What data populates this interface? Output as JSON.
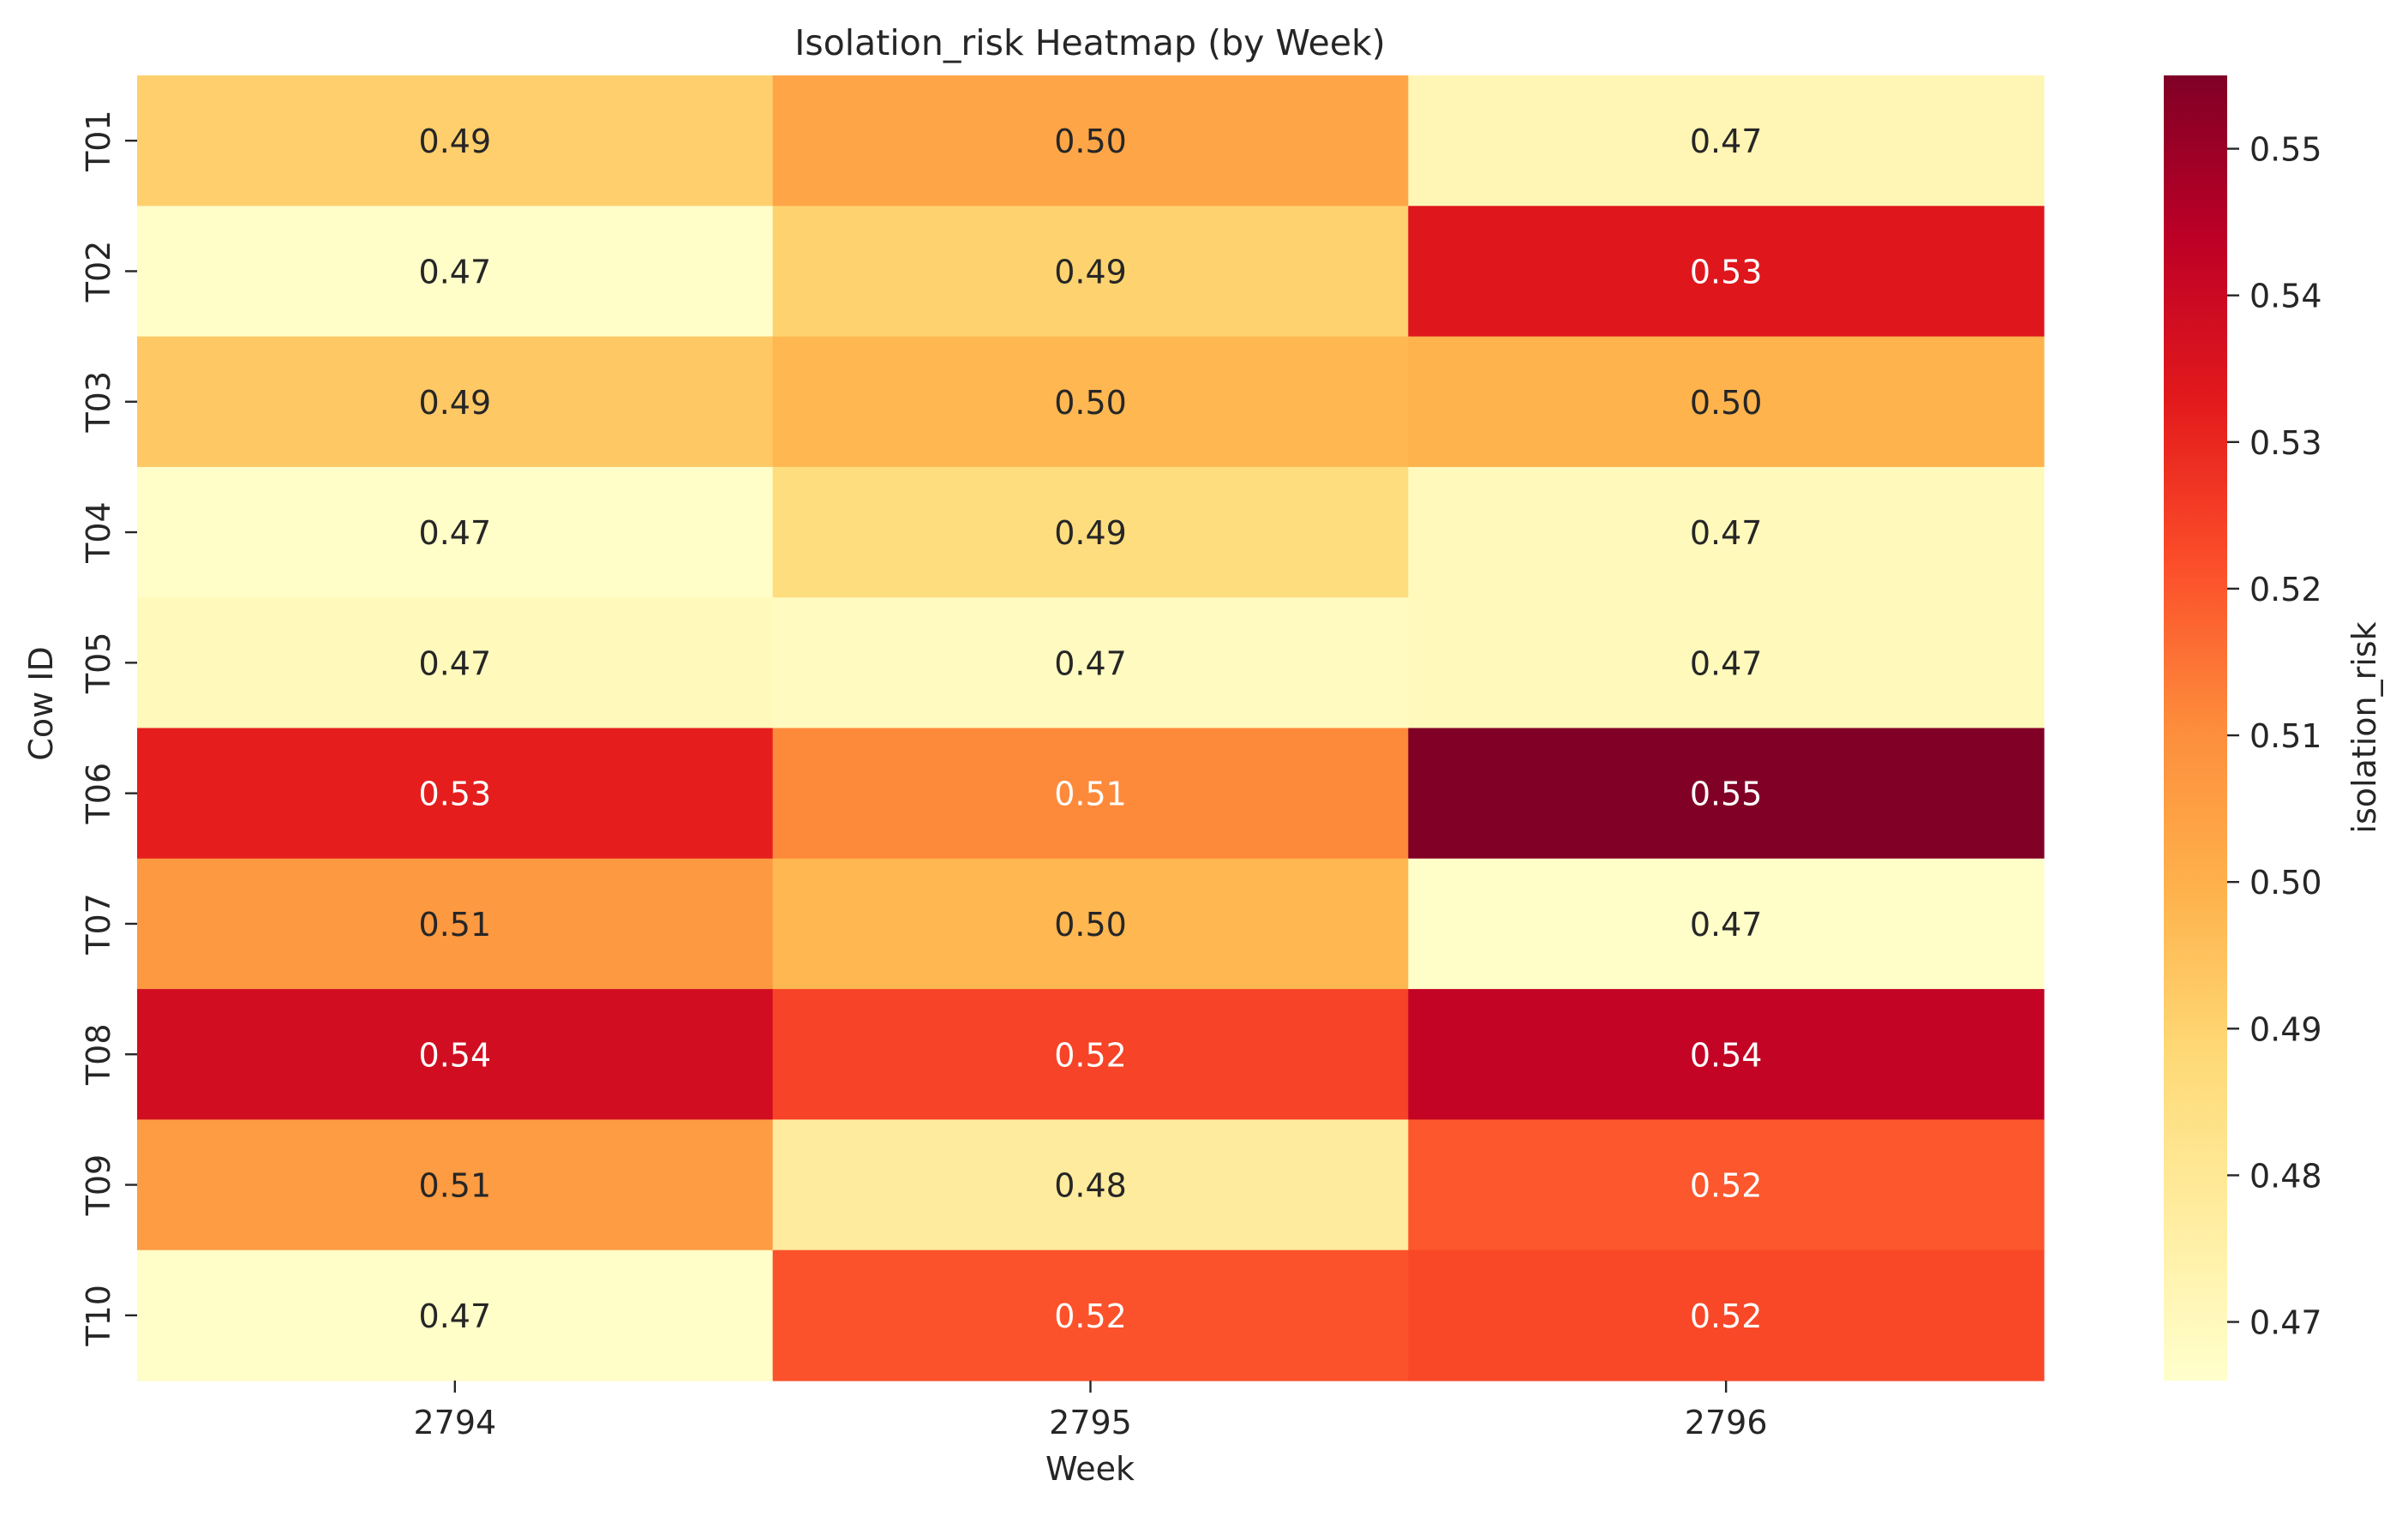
{
  "chart_data": {
    "type": "heatmap",
    "title": "Isolation_risk Heatmap (by Week)",
    "xlabel": "Week",
    "ylabel": "Cow ID",
    "colorbar_label": "isolation_risk",
    "colormap": "YlOrRd",
    "x": [
      "2794",
      "2795",
      "2796"
    ],
    "y": [
      "T01",
      "T02",
      "T03",
      "T04",
      "T05",
      "T06",
      "T07",
      "T08",
      "T09",
      "T10"
    ],
    "values": [
      [
        0.491,
        0.503,
        0.472
      ],
      [
        0.467,
        0.49,
        0.534
      ],
      [
        0.493,
        0.498,
        0.499
      ],
      [
        0.467,
        0.486,
        0.47
      ],
      [
        0.47,
        0.469,
        0.47
      ],
      [
        0.532,
        0.511,
        0.555
      ],
      [
        0.507,
        0.498,
        0.467
      ],
      [
        0.538,
        0.524,
        0.542
      ],
      [
        0.506,
        0.478,
        0.52
      ],
      [
        0.467,
        0.521,
        0.523
      ]
    ],
    "labels": [
      [
        "0.49",
        "0.50",
        "0.47"
      ],
      [
        "0.47",
        "0.49",
        "0.53"
      ],
      [
        "0.49",
        "0.50",
        "0.50"
      ],
      [
        "0.47",
        "0.49",
        "0.47"
      ],
      [
        "0.47",
        "0.47",
        "0.47"
      ],
      [
        "0.53",
        "0.51",
        "0.55"
      ],
      [
        "0.51",
        "0.50",
        "0.47"
      ],
      [
        "0.54",
        "0.52",
        "0.54"
      ],
      [
        "0.51",
        "0.48",
        "0.52"
      ],
      [
        "0.47",
        "0.52",
        "0.52"
      ]
    ],
    "vmin": 0.466,
    "vmax": 0.555,
    "colorbar_ticks": [
      "0.47",
      "0.48",
      "0.49",
      "0.50",
      "0.51",
      "0.52",
      "0.53",
      "0.54",
      "0.55"
    ]
  }
}
